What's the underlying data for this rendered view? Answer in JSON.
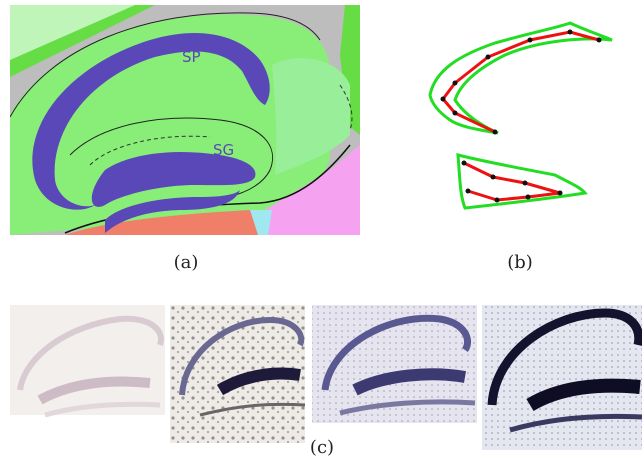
{
  "panel_a": {
    "label_sp": "SP",
    "label_sg": "SG",
    "caption": "(a)",
    "colors": {
      "background_gray": "#bdbdbd",
      "green": "#88ee77",
      "bright_green": "#66dd44",
      "light_green": "#99ee99",
      "pale_green": "#bff5b8",
      "purple": "#5a47b8",
      "pink": "#f5a3f0",
      "salmon": "#f07f6a",
      "cyan": "#9fe8f0"
    }
  },
  "panel_b": {
    "caption": "(b)",
    "colors": {
      "outline": "#22dd22",
      "skeleton": "#ee1111",
      "node": "#111111"
    }
  },
  "panel_c": {
    "caption": "(c)",
    "images": [
      {
        "name": "faint-stain"
      },
      {
        "name": "dotted-stain"
      },
      {
        "name": "medium-stain"
      },
      {
        "name": "dark-stain"
      }
    ]
  }
}
